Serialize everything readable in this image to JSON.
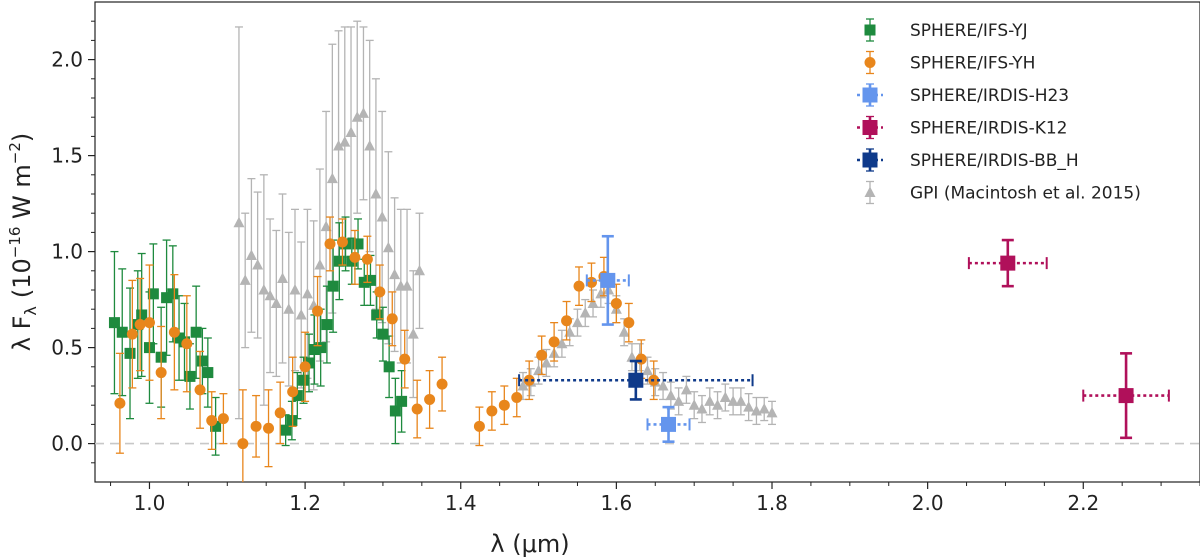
{
  "chart_data": {
    "type": "scatter",
    "title": "",
    "xlabel": "λ (μm)",
    "ylabel": "λ F",
    "ylabel_sub": "λ",
    "ylabel_open": "(10",
    "ylabel_exp": "−16",
    "ylabel_units": " W m",
    "ylabel_exp2": "−2",
    "ylabel_close": ")",
    "xlim": [
      0.93,
      2.35
    ],
    "ylim": [
      -0.2,
      2.3
    ],
    "xticks": [
      1.0,
      1.2,
      1.4,
      1.6,
      1.8,
      2.0,
      2.2
    ],
    "xtick_labels": [
      "1.0",
      "1.2",
      "1.4",
      "1.6",
      "1.8",
      "2.0",
      "2.2"
    ],
    "yticks": [
      0.0,
      0.5,
      1.0,
      1.5,
      2.0
    ],
    "ytick_labels": [
      "0.0",
      "0.5",
      "1.0",
      "1.5",
      "2.0"
    ],
    "zero_line": true,
    "legend_position": "top-right",
    "series": [
      {
        "name": "SPHERE/IFS-YJ",
        "color": "#1e8a3e",
        "marker": "square",
        "points": [
          {
            "x": 0.955,
            "y": 0.63,
            "err": 0.37
          },
          {
            "x": 0.965,
            "y": 0.58,
            "err": 0.33
          },
          {
            "x": 0.975,
            "y": 0.47,
            "err": 0.34
          },
          {
            "x": 0.985,
            "y": 0.62,
            "err": 0.28
          },
          {
            "x": 0.99,
            "y": 0.67,
            "err": 0.32
          },
          {
            "x": 1.0,
            "y": 0.5,
            "err": 0.29
          },
          {
            "x": 1.005,
            "y": 0.78,
            "err": 0.26
          },
          {
            "x": 1.015,
            "y": 0.45,
            "err": 0.26
          },
          {
            "x": 1.022,
            "y": 0.76,
            "err": 0.3
          },
          {
            "x": 1.03,
            "y": 0.78,
            "err": 0.25
          },
          {
            "x": 1.038,
            "y": 0.55,
            "err": 0.22
          },
          {
            "x": 1.045,
            "y": 0.53,
            "err": 0.2
          },
          {
            "x": 1.052,
            "y": 0.35,
            "err": 0.17
          },
          {
            "x": 1.06,
            "y": 0.58,
            "err": 0.24
          },
          {
            "x": 1.068,
            "y": 0.43,
            "err": 0.17
          },
          {
            "x": 1.075,
            "y": 0.37,
            "err": 0.18
          },
          {
            "x": 1.085,
            "y": 0.09,
            "err": 0.15
          },
          {
            "x": 1.175,
            "y": 0.07,
            "err": 0.08
          },
          {
            "x": 1.183,
            "y": 0.12,
            "err": 0.1
          },
          {
            "x": 1.19,
            "y": 0.25,
            "err": 0.12
          },
          {
            "x": 1.198,
            "y": 0.33,
            "err": 0.12
          },
          {
            "x": 1.205,
            "y": 0.42,
            "err": 0.15
          },
          {
            "x": 1.212,
            "y": 0.49,
            "err": 0.18
          },
          {
            "x": 1.22,
            "y": 0.5,
            "err": 0.2
          },
          {
            "x": 1.228,
            "y": 0.62,
            "err": 0.2
          },
          {
            "x": 1.236,
            "y": 0.82,
            "err": 0.24
          },
          {
            "x": 1.244,
            "y": 0.95,
            "err": 0.2
          },
          {
            "x": 1.252,
            "y": 1.04,
            "err": 0.14
          },
          {
            "x": 1.26,
            "y": 0.95,
            "err": 0.12
          },
          {
            "x": 1.268,
            "y": 1.04,
            "err": 0.13
          },
          {
            "x": 1.276,
            "y": 0.84,
            "err": 0.12
          },
          {
            "x": 1.284,
            "y": 0.85,
            "err": 0.13
          },
          {
            "x": 1.292,
            "y": 0.67,
            "err": 0.12
          },
          {
            "x": 1.3,
            "y": 0.57,
            "err": 0.14
          },
          {
            "x": 1.308,
            "y": 0.4,
            "err": 0.16
          },
          {
            "x": 1.316,
            "y": 0.17,
            "err": 0.17
          },
          {
            "x": 1.324,
            "y": 0.22,
            "err": 0.16
          }
        ]
      },
      {
        "name": "SPHERE/IFS-YH",
        "color": "#e8861c",
        "marker": "circle",
        "points": [
          {
            "x": 0.962,
            "y": 0.21,
            "err": 0.26
          },
          {
            "x": 0.978,
            "y": 0.57,
            "err": 0.28
          },
          {
            "x": 0.988,
            "y": 0.62,
            "err": 0.24
          },
          {
            "x": 1.0,
            "y": 0.63,
            "err": 0.3
          },
          {
            "x": 1.015,
            "y": 0.37,
            "err": 0.24
          },
          {
            "x": 1.032,
            "y": 0.58,
            "err": 0.3
          },
          {
            "x": 1.048,
            "y": 0.52,
            "err": 0.25
          },
          {
            "x": 1.065,
            "y": 0.28,
            "err": 0.2
          },
          {
            "x": 1.08,
            "y": 0.12,
            "err": 0.15
          },
          {
            "x": 1.095,
            "y": 0.13,
            "err": 0.13
          },
          {
            "x": 1.12,
            "y": 0.0,
            "err": 0.28
          },
          {
            "x": 1.137,
            "y": 0.09,
            "err": 0.16
          },
          {
            "x": 1.153,
            "y": 0.08,
            "err": 0.2
          },
          {
            "x": 1.168,
            "y": 0.16,
            "err": 0.16
          },
          {
            "x": 1.184,
            "y": 0.27,
            "err": 0.18
          },
          {
            "x": 1.2,
            "y": 0.4,
            "err": 0.18
          },
          {
            "x": 1.216,
            "y": 0.69,
            "err": 0.18
          },
          {
            "x": 1.232,
            "y": 1.04,
            "err": 0.14
          },
          {
            "x": 1.248,
            "y": 1.05,
            "err": 0.12
          },
          {
            "x": 1.264,
            "y": 0.97,
            "err": 0.14
          },
          {
            "x": 1.28,
            "y": 0.96,
            "err": 0.12
          },
          {
            "x": 1.296,
            "y": 0.79,
            "err": 0.14
          },
          {
            "x": 1.312,
            "y": 0.65,
            "err": 0.14
          },
          {
            "x": 1.328,
            "y": 0.44,
            "err": 0.15
          },
          {
            "x": 1.344,
            "y": 0.18,
            "err": 0.15
          },
          {
            "x": 1.36,
            "y": 0.23,
            "err": 0.15
          },
          {
            "x": 1.376,
            "y": 0.31,
            "err": 0.14
          },
          {
            "x": 1.424,
            "y": 0.09,
            "err": 0.1
          },
          {
            "x": 1.44,
            "y": 0.17,
            "err": 0.1
          },
          {
            "x": 1.456,
            "y": 0.2,
            "err": 0.1
          },
          {
            "x": 1.472,
            "y": 0.24,
            "err": 0.1
          },
          {
            "x": 1.488,
            "y": 0.33,
            "err": 0.1
          },
          {
            "x": 1.504,
            "y": 0.46,
            "err": 0.1
          },
          {
            "x": 1.52,
            "y": 0.53,
            "err": 0.1
          },
          {
            "x": 1.536,
            "y": 0.64,
            "err": 0.1
          },
          {
            "x": 1.552,
            "y": 0.82,
            "err": 0.1
          },
          {
            "x": 1.568,
            "y": 0.84,
            "err": 0.1
          },
          {
            "x": 1.584,
            "y": 0.87,
            "err": 0.1
          },
          {
            "x": 1.6,
            "y": 0.73,
            "err": 0.1
          },
          {
            "x": 1.616,
            "y": 0.63,
            "err": 0.1
          },
          {
            "x": 1.632,
            "y": 0.44,
            "err": 0.1
          },
          {
            "x": 1.648,
            "y": 0.33,
            "err": 0.1
          }
        ]
      },
      {
        "name": "SPHERE/IRDIS-H23",
        "color": "#6495ed",
        "marker": "square-large",
        "points": [
          {
            "x": 1.589,
            "y": 0.85,
            "err": 0.23,
            "xerr": 0.027
          },
          {
            "x": 1.667,
            "y": 0.1,
            "err": 0.09,
            "xerr": 0.027
          }
        ]
      },
      {
        "name": "SPHERE/IRDIS-K12",
        "color": "#b0105a",
        "marker": "square-large",
        "points": [
          {
            "x": 2.103,
            "y": 0.94,
            "err": 0.12,
            "xerr": 0.05
          },
          {
            "x": 2.255,
            "y": 0.25,
            "err": 0.22,
            "xerr": 0.055
          }
        ]
      },
      {
        "name": "SPHERE/IRDIS-BB_H",
        "color": "#0f3a8a",
        "marker": "square-large",
        "points": [
          {
            "x": 1.625,
            "y": 0.33,
            "err": 0.1,
            "xerr": 0.15
          }
        ]
      },
      {
        "name": "GPI (Macintosh et al. 2015)",
        "color": "#b4b4b4",
        "marker": "triangle",
        "points": [
          {
            "x": 1.115,
            "y": 1.15,
            "err": 1.02
          },
          {
            "x": 1.123,
            "y": 0.85,
            "err": 0.35
          },
          {
            "x": 1.131,
            "y": 0.98,
            "err": 0.4
          },
          {
            "x": 1.139,
            "y": 0.93,
            "err": 0.38
          },
          {
            "x": 1.147,
            "y": 0.8,
            "err": 0.6
          },
          {
            "x": 1.155,
            "y": 0.77,
            "err": 0.4
          },
          {
            "x": 1.163,
            "y": 0.73,
            "err": 0.38
          },
          {
            "x": 1.171,
            "y": 0.86,
            "err": 0.44
          },
          {
            "x": 1.179,
            "y": 0.7,
            "err": 0.4
          },
          {
            "x": 1.187,
            "y": 0.8,
            "err": 0.42
          },
          {
            "x": 1.195,
            "y": 0.67,
            "err": 0.38
          },
          {
            "x": 1.203,
            "y": 0.78,
            "err": 0.44
          },
          {
            "x": 1.211,
            "y": 0.72,
            "err": 0.44
          },
          {
            "x": 1.219,
            "y": 0.93,
            "err": 0.5
          },
          {
            "x": 1.227,
            "y": 1.13,
            "err": 0.6
          },
          {
            "x": 1.235,
            "y": 1.38,
            "err": 0.7
          },
          {
            "x": 1.243,
            "y": 1.55,
            "err": 0.6
          },
          {
            "x": 1.251,
            "y": 1.57,
            "err": 0.6
          },
          {
            "x": 1.259,
            "y": 1.62,
            "err": 0.55
          },
          {
            "x": 1.267,
            "y": 1.7,
            "err": 0.5
          },
          {
            "x": 1.275,
            "y": 1.72,
            "err": 0.45
          },
          {
            "x": 1.283,
            "y": 1.55,
            "err": 0.55
          },
          {
            "x": 1.291,
            "y": 1.3,
            "err": 0.6
          },
          {
            "x": 1.299,
            "y": 1.18,
            "err": 0.55
          },
          {
            "x": 1.307,
            "y": 1.02,
            "err": 0.5
          },
          {
            "x": 1.315,
            "y": 0.88,
            "err": 0.4
          },
          {
            "x": 1.323,
            "y": 0.82,
            "err": 0.4
          },
          {
            "x": 1.331,
            "y": 0.82,
            "err": 0.4
          },
          {
            "x": 1.339,
            "y": 0.57,
            "err": 0.33
          },
          {
            "x": 1.347,
            "y": 0.9,
            "err": 0.3
          },
          {
            "x": 1.48,
            "y": 0.3,
            "err": 0.07
          },
          {
            "x": 1.49,
            "y": 0.32,
            "err": 0.07
          },
          {
            "x": 1.5,
            "y": 0.38,
            "err": 0.07
          },
          {
            "x": 1.51,
            "y": 0.42,
            "err": 0.07
          },
          {
            "x": 1.52,
            "y": 0.47,
            "err": 0.07
          },
          {
            "x": 1.53,
            "y": 0.52,
            "err": 0.07
          },
          {
            "x": 1.54,
            "y": 0.58,
            "err": 0.07
          },
          {
            "x": 1.55,
            "y": 0.63,
            "err": 0.07
          },
          {
            "x": 1.56,
            "y": 0.68,
            "err": 0.07
          },
          {
            "x": 1.57,
            "y": 0.73,
            "err": 0.07
          },
          {
            "x": 1.58,
            "y": 0.78,
            "err": 0.07
          },
          {
            "x": 1.59,
            "y": 0.8,
            "err": 0.07
          },
          {
            "x": 1.6,
            "y": 0.7,
            "err": 0.07
          },
          {
            "x": 1.61,
            "y": 0.58,
            "err": 0.07
          },
          {
            "x": 1.62,
            "y": 0.45,
            "err": 0.07
          },
          {
            "x": 1.63,
            "y": 0.45,
            "err": 0.07
          },
          {
            "x": 1.64,
            "y": 0.38,
            "err": 0.07
          },
          {
            "x": 1.65,
            "y": 0.32,
            "err": 0.07
          },
          {
            "x": 1.66,
            "y": 0.3,
            "err": 0.07
          },
          {
            "x": 1.67,
            "y": 0.25,
            "err": 0.07
          },
          {
            "x": 1.68,
            "y": 0.22,
            "err": 0.07
          },
          {
            "x": 1.69,
            "y": 0.28,
            "err": 0.07
          },
          {
            "x": 1.7,
            "y": 0.2,
            "err": 0.07
          },
          {
            "x": 1.71,
            "y": 0.18,
            "err": 0.07
          },
          {
            "x": 1.72,
            "y": 0.22,
            "err": 0.07
          },
          {
            "x": 1.73,
            "y": 0.2,
            "err": 0.07
          },
          {
            "x": 1.74,
            "y": 0.24,
            "err": 0.07
          },
          {
            "x": 1.75,
            "y": 0.22,
            "err": 0.07
          },
          {
            "x": 1.76,
            "y": 0.22,
            "err": 0.07
          },
          {
            "x": 1.77,
            "y": 0.19,
            "err": 0.07
          },
          {
            "x": 1.78,
            "y": 0.17,
            "err": 0.07
          },
          {
            "x": 1.79,
            "y": 0.18,
            "err": 0.06
          },
          {
            "x": 1.8,
            "y": 0.16,
            "err": 0.06
          }
        ]
      }
    ]
  }
}
